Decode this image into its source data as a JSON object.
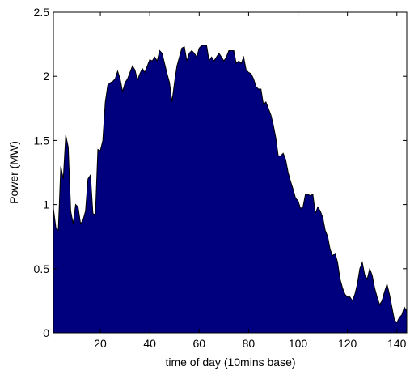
{
  "chart_data": {
    "type": "area",
    "x_label": "time of day (10mins base)",
    "y_label": "Power (MW)",
    "x": [
      1,
      2,
      3,
      4,
      5,
      6,
      7,
      8,
      9,
      10,
      11,
      12,
      13,
      14,
      15,
      16,
      17,
      18,
      19,
      20,
      21,
      22,
      23,
      24,
      25,
      26,
      27,
      28,
      29,
      30,
      31,
      32,
      33,
      34,
      35,
      36,
      37,
      38,
      39,
      40,
      41,
      42,
      43,
      44,
      45,
      46,
      47,
      48,
      49,
      50,
      51,
      52,
      53,
      54,
      55,
      56,
      57,
      58,
      59,
      60,
      61,
      62,
      63,
      64,
      65,
      66,
      67,
      68,
      69,
      70,
      71,
      72,
      73,
      74,
      75,
      76,
      77,
      78,
      79,
      80,
      81,
      82,
      83,
      84,
      85,
      86,
      87,
      88,
      89,
      90,
      91,
      92,
      93,
      94,
      95,
      96,
      97,
      98,
      99,
      100,
      101,
      102,
      103,
      104,
      105,
      106,
      107,
      108,
      109,
      110,
      111,
      112,
      113,
      114,
      115,
      116,
      117,
      118,
      119,
      120,
      121,
      122,
      123,
      124,
      125,
      126,
      127,
      128,
      129,
      130,
      131,
      132,
      133,
      134,
      135,
      136,
      137,
      138,
      139,
      140,
      141,
      142,
      143,
      144
    ],
    "values": [
      0.97,
      0.82,
      0.8,
      1.3,
      1.2,
      1.54,
      1.45,
      0.95,
      0.85,
      1.0,
      0.98,
      0.85,
      0.88,
      0.95,
      1.2,
      1.23,
      0.93,
      0.92,
      1.43,
      1.42,
      1.5,
      1.8,
      1.93,
      1.95,
      1.96,
      1.98,
      2.04,
      1.98,
      1.88,
      1.95,
      1.98,
      2.03,
      2.08,
      2.05,
      1.97,
      2.02,
      2.06,
      2.03,
      2.08,
      2.13,
      2.12,
      2.15,
      2.12,
      2.2,
      2.18,
      2.1,
      2.02,
      1.95,
      1.8,
      1.95,
      2.08,
      2.15,
      2.22,
      2.23,
      2.12,
      2.18,
      2.2,
      2.18,
      2.15,
      2.22,
      2.24,
      2.24,
      2.24,
      2.12,
      2.15,
      2.12,
      2.15,
      2.18,
      2.15,
      2.12,
      2.15,
      2.2,
      2.2,
      2.2,
      2.1,
      2.12,
      2.1,
      2.15,
      2.05,
      2.03,
      2.02,
      1.98,
      1.92,
      1.9,
      1.9,
      1.78,
      1.8,
      1.75,
      1.7,
      1.62,
      1.52,
      1.38,
      1.38,
      1.4,
      1.35,
      1.25,
      1.18,
      1.12,
      1.05,
      1.03,
      0.97,
      0.98,
      1.08,
      1.08,
      1.07,
      1.08,
      0.93,
      0.98,
      0.95,
      0.9,
      0.8,
      0.75,
      0.65,
      0.6,
      0.62,
      0.55,
      0.42,
      0.35,
      0.3,
      0.28,
      0.28,
      0.25,
      0.3,
      0.38,
      0.5,
      0.55,
      0.45,
      0.42,
      0.5,
      0.45,
      0.35,
      0.28,
      0.22,
      0.25,
      0.32,
      0.38,
      0.3,
      0.2,
      0.1,
      0.08,
      0.12,
      0.14,
      0.2,
      0.17
    ],
    "color": "#00007f",
    "xlim": [
      1,
      144
    ],
    "xticks": [
      20,
      40,
      60,
      80,
      100,
      120,
      140
    ],
    "ylim": [
      0,
      2.5
    ],
    "yticks": [
      0,
      0.5,
      1,
      1.5,
      2,
      2.5
    ]
  }
}
